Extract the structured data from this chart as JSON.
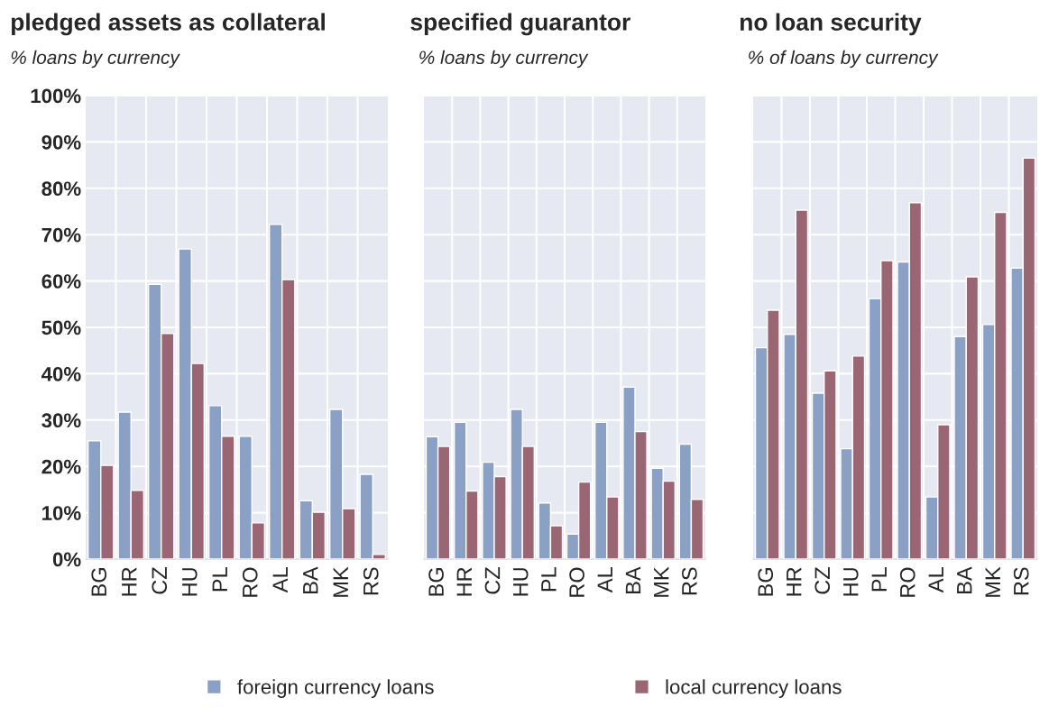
{
  "chart_data": [
    {
      "type": "bar",
      "title": "pledged assets as collateral",
      "subtitle": "% loans by currency",
      "categories": [
        "BG",
        "HR",
        "CZ",
        "HU",
        "PL",
        "RO",
        "AL",
        "BA",
        "MK",
        "RS"
      ],
      "series": [
        {
          "name": "foreign currency loans",
          "color": "#8aa0c4",
          "values": [
            25.5,
            31.7,
            59.3,
            66.9,
            33.1,
            26.5,
            72.2,
            12.6,
            32.3,
            18.3
          ]
        },
        {
          "name": "local currency loans",
          "color": "#9b6673",
          "values": [
            20.2,
            14.8,
            48.7,
            42.2,
            26.5,
            7.8,
            60.3,
            10.1,
            10.9,
            1.0
          ]
        }
      ],
      "ylim": [
        0,
        100
      ],
      "yticks": [
        {
          "value": 0,
          "label": "0%"
        },
        {
          "value": 10,
          "label": "10%"
        },
        {
          "value": 20,
          "label": "20%"
        },
        {
          "value": 30,
          "label": "30%"
        },
        {
          "value": 40,
          "label": "40%"
        },
        {
          "value": 50,
          "label": "50%"
        },
        {
          "value": 60,
          "label": "60%"
        },
        {
          "value": 70,
          "label": "70%"
        },
        {
          "value": 80,
          "label": "80%"
        },
        {
          "value": 90,
          "label": "90%"
        },
        {
          "value": 100,
          "label": "100%"
        }
      ],
      "grid": true,
      "legend": "bottom"
    },
    {
      "type": "bar",
      "title": "specified guarantor",
      "subtitle": "% loans by currency",
      "categories": [
        "BG",
        "HR",
        "CZ",
        "HU",
        "PL",
        "RO",
        "AL",
        "BA",
        "MK",
        "RS"
      ],
      "series": [
        {
          "color": "#8aa0c4",
          "values": [
            26.4,
            29.5,
            20.9,
            32.3,
            12.1,
            5.4,
            29.5,
            37.1,
            19.6,
            24.8
          ]
        },
        {
          "color": "#9b6673",
          "values": [
            24.3,
            14.7,
            17.8,
            24.3,
            7.2,
            16.6,
            13.4,
            27.5,
            16.8,
            12.9
          ]
        }
      ],
      "ylim": [
        0,
        100
      ],
      "yticks": [
        0,
        10,
        20,
        30,
        40,
        50,
        60,
        70,
        80,
        90,
        100
      ],
      "tick_labels": "x",
      "grid": true
    },
    {
      "type": "bar",
      "title": "no loan security",
      "subtitle": "% of loans by currency",
      "categories": [
        "BG",
        "HR",
        "CZ",
        "HU",
        "PL",
        "RO",
        "AL",
        "BA",
        "MK",
        "RS"
      ],
      "series": [
        {
          "color": "#8aa0c4",
          "values": [
            45.6,
            48.5,
            35.8,
            23.8,
            56.2,
            64.1,
            13.4,
            48.0,
            50.6,
            62.8
          ]
        },
        {
          "color": "#9b6673",
          "values": [
            53.7,
            75.3,
            40.6,
            43.8,
            64.4,
            76.9,
            29.0,
            60.9,
            74.8,
            86.5
          ]
        }
      ],
      "ylim": [
        0,
        100
      ],
      "yticks": [
        0,
        10,
        20,
        30,
        40,
        50,
        60,
        70,
        80,
        90,
        100
      ],
      "tick_labels": "x",
      "grid": true
    }
  ]
}
